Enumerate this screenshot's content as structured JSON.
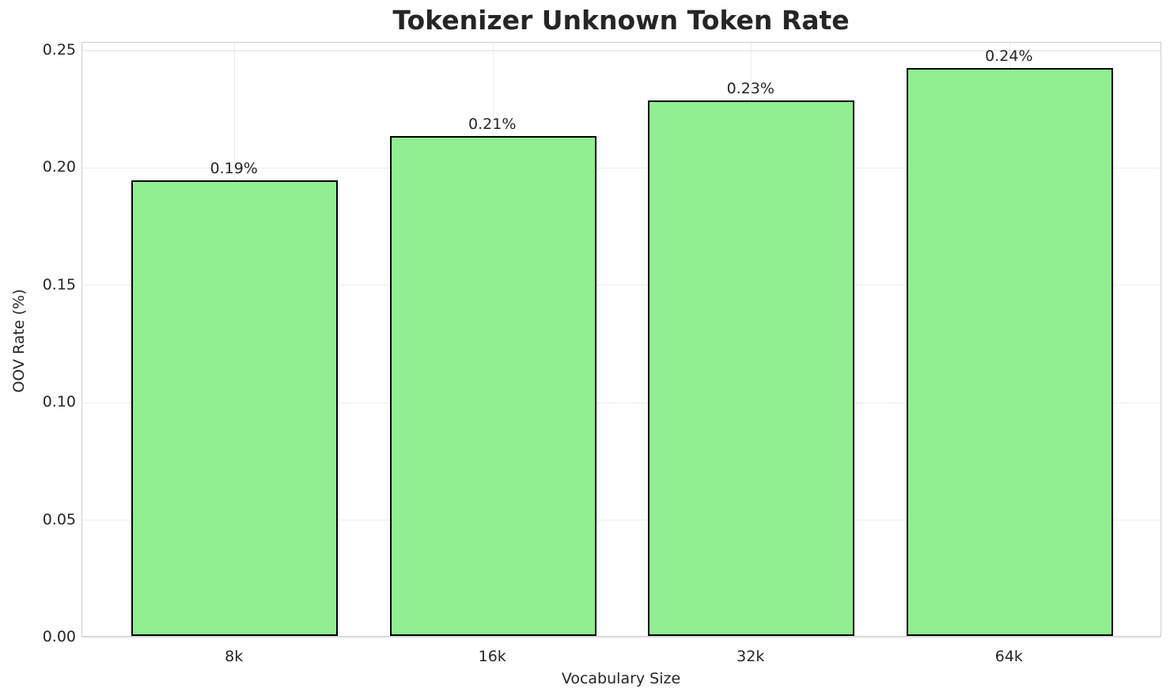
{
  "chart_data": {
    "type": "bar",
    "title": "Tokenizer Unknown Token Rate",
    "xlabel": "Vocabulary Size",
    "ylabel": "OOV Rate (%)",
    "categories": [
      "8k",
      "16k",
      "32k",
      "64k"
    ],
    "values": [
      0.194,
      0.213,
      0.228,
      0.242
    ],
    "bar_labels": [
      "0.19%",
      "0.21%",
      "0.23%",
      "0.24%"
    ],
    "yticks": [
      0,
      0.05,
      0.1,
      0.15,
      0.2,
      0.25
    ],
    "ytick_labels": [
      "0.00",
      "0.05",
      "0.10",
      "0.15",
      "0.20",
      "0.25"
    ],
    "ylim": [
      0,
      0.2534
    ],
    "xlim": [
      -0.59,
      3.59
    ],
    "bar_width": 0.8,
    "grid": true,
    "legend": "none",
    "colors": {
      "bar_fill": "#90EE90",
      "bar_edge": "#000000",
      "grid": "#ececec",
      "spine": "#cccccc",
      "text": "#262626",
      "background": "#ffffff"
    }
  }
}
